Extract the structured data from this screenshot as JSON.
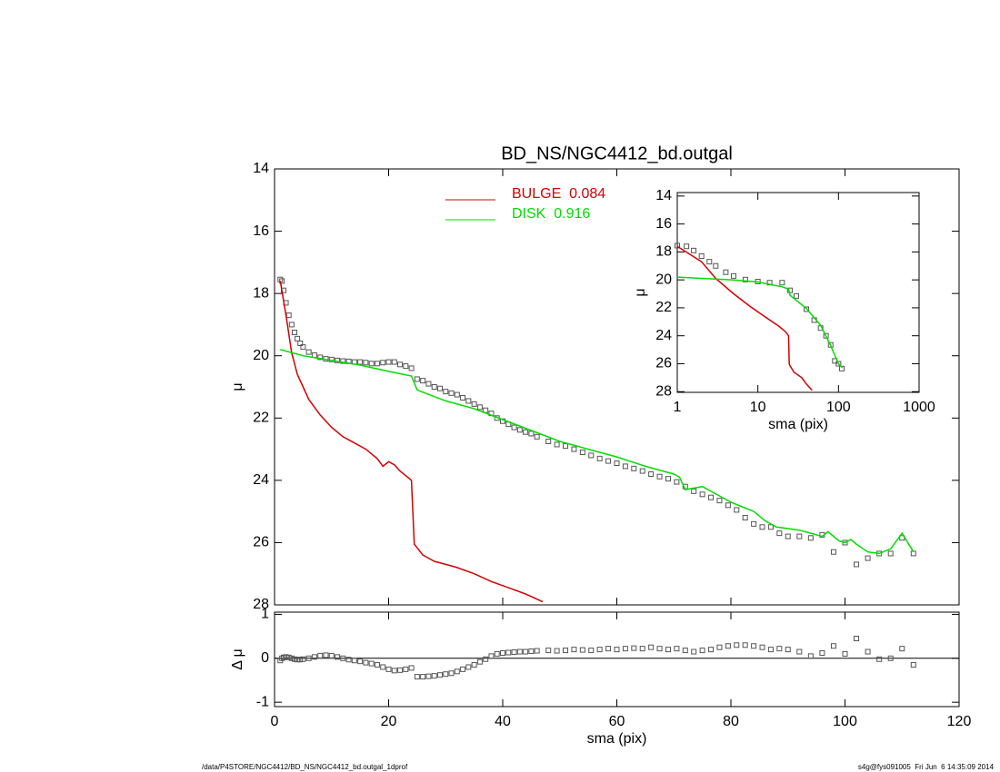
{
  "chart_data": [
    {
      "type": "line",
      "title": "BD_NS/NGC4412_bd.outgal",
      "ylabel": "μ",
      "xlim": [
        0,
        120
      ],
      "xticks": [
        0,
        20,
        40,
        60,
        80,
        100,
        120
      ],
      "ylim": [
        14,
        28
      ],
      "y_inverted": true,
      "yticks": [
        14,
        16,
        18,
        20,
        22,
        24,
        26,
        28
      ],
      "series": [
        {
          "style": "markers",
          "color": "#555555",
          "x": [
            1,
            1.3,
            1.6,
            2,
            2.5,
            3,
            3.5,
            4,
            4.5,
            5,
            6,
            7,
            8,
            9,
            10,
            11,
            12,
            13,
            14,
            15,
            16,
            17,
            18,
            19,
            20,
            21,
            22,
            23,
            24,
            25,
            26,
            27,
            28,
            29,
            30,
            31,
            32,
            33,
            34,
            35,
            36,
            37,
            38,
            39,
            40,
            41,
            42,
            43,
            44,
            45,
            46,
            48,
            49.5,
            51,
            52.5,
            54,
            55.5,
            57,
            58.5,
            60,
            61.5,
            63,
            64.5,
            66,
            67.5,
            69,
            70.5,
            72,
            73.5,
            75,
            76.5,
            78,
            79.5,
            81,
            82.5,
            84,
            85.5,
            87,
            88.5,
            90,
            92,
            94,
            96,
            98,
            100,
            102,
            104,
            106,
            108,
            110,
            112
          ],
          "values": [
            17.55,
            17.6,
            17.9,
            18.3,
            18.7,
            19.0,
            19.25,
            19.45,
            19.6,
            19.72,
            19.88,
            19.98,
            20.05,
            20.1,
            20.12,
            20.15,
            20.17,
            20.18,
            20.2,
            20.2,
            20.22,
            20.25,
            20.25,
            20.22,
            20.2,
            20.2,
            20.28,
            20.33,
            20.4,
            20.75,
            20.8,
            20.9,
            21.0,
            21.05,
            21.15,
            21.2,
            21.25,
            21.35,
            21.45,
            21.55,
            21.65,
            21.75,
            21.85,
            22.0,
            22.1,
            22.2,
            22.3,
            22.38,
            22.45,
            22.5,
            22.6,
            22.75,
            22.85,
            22.9,
            23.0,
            23.1,
            23.2,
            23.3,
            23.38,
            23.45,
            23.55,
            23.62,
            23.7,
            23.8,
            23.88,
            23.95,
            24.05,
            24.2,
            24.35,
            24.45,
            24.55,
            24.65,
            24.8,
            24.95,
            25.2,
            25.4,
            25.5,
            25.5,
            25.7,
            25.8,
            25.8,
            25.85,
            25.75,
            26.3,
            26.0,
            26.7,
            26.5,
            26.35,
            26.35,
            25.85,
            26.35
          ]
        },
        {
          "name": "BULGE  0.084",
          "style": "line",
          "color": "#d40000",
          "x": [
            1,
            2,
            3,
            4,
            5,
            6,
            8,
            10,
            12,
            14,
            16,
            18,
            19,
            20,
            21,
            22,
            23,
            24,
            24.5,
            26,
            28,
            30,
            32,
            35,
            38,
            41,
            44,
            47
          ],
          "values": [
            17.6,
            18.7,
            19.9,
            20.6,
            21.0,
            21.4,
            21.9,
            22.3,
            22.6,
            22.8,
            23.0,
            23.3,
            23.55,
            23.4,
            23.5,
            23.7,
            23.85,
            24.0,
            26.05,
            26.4,
            26.6,
            26.7,
            26.8,
            27.0,
            27.25,
            27.45,
            27.65,
            27.9
          ]
        },
        {
          "name": "DISK  0.916",
          "style": "line",
          "color": "#00dd00",
          "x": [
            1,
            5,
            10,
            15,
            20,
            24,
            25,
            30,
            35,
            40,
            45,
            50,
            55,
            60,
            65,
            70,
            71,
            72,
            75,
            77,
            80,
            82,
            84,
            86,
            88,
            90,
            92,
            94,
            96,
            97,
            99,
            100,
            101,
            102,
            104,
            106,
            108,
            110,
            112
          ],
          "values": [
            19.8,
            20.0,
            20.15,
            20.3,
            20.5,
            20.65,
            21.1,
            21.45,
            21.7,
            22.05,
            22.4,
            22.75,
            23.0,
            23.25,
            23.55,
            23.8,
            23.9,
            24.3,
            24.2,
            24.4,
            24.7,
            24.85,
            25.0,
            25.3,
            25.5,
            25.55,
            25.6,
            25.7,
            25.8,
            25.65,
            25.95,
            26.0,
            25.9,
            26.05,
            26.3,
            26.35,
            26.2,
            25.7,
            26.3
          ]
        }
      ]
    },
    {
      "type": "line",
      "xlabel": "sma (pix)",
      "ylabel": "Δ μ",
      "zero_line": true,
      "xlim": [
        0,
        120
      ],
      "xticks": [
        0,
        20,
        40,
        60,
        80,
        100,
        120
      ],
      "ylim": [
        -1.1,
        1.05
      ],
      "yticks": [
        -1,
        0,
        1
      ],
      "series": [
        {
          "style": "markers",
          "color": "#555555",
          "x": [
            1,
            1.3,
            1.6,
            2,
            2.5,
            3,
            3.5,
            4,
            4.5,
            5,
            6,
            7,
            8,
            9,
            10,
            11,
            12,
            13,
            14,
            15,
            16,
            17,
            18,
            19,
            20,
            21,
            22,
            23,
            24,
            25,
            26,
            27,
            28,
            29,
            30,
            31,
            32,
            33,
            34,
            35,
            36,
            37,
            38,
            39,
            40,
            41,
            42,
            43,
            44,
            45,
            46,
            48,
            49.5,
            51,
            52.5,
            54,
            55.5,
            57,
            58.5,
            60,
            61.5,
            63,
            64.5,
            66,
            67.5,
            69,
            70.5,
            72,
            73.5,
            75,
            76.5,
            78,
            79.5,
            81,
            82.5,
            84,
            85.5,
            87,
            88.5,
            90,
            92,
            94,
            96,
            98,
            100,
            102,
            104,
            106,
            108,
            110,
            112
          ],
          "values": [
            -0.05,
            0,
            0.02,
            0.03,
            0.02,
            0,
            -0.02,
            -0.03,
            -0.03,
            -0.02,
            0,
            0.03,
            0.06,
            0.07,
            0.06,
            0.03,
            0,
            -0.03,
            -0.05,
            -0.07,
            -0.1,
            -0.12,
            -0.15,
            -0.2,
            -0.25,
            -0.28,
            -0.27,
            -0.25,
            -0.22,
            -0.42,
            -0.42,
            -0.41,
            -0.4,
            -0.38,
            -0.36,
            -0.34,
            -0.3,
            -0.25,
            -0.2,
            -0.15,
            -0.08,
            -0.02,
            0.05,
            0.1,
            0.12,
            0.13,
            0.14,
            0.15,
            0.15,
            0.16,
            0.17,
            0.18,
            0.17,
            0.18,
            0.2,
            0.19,
            0.18,
            0.2,
            0.22,
            0.2,
            0.22,
            0.23,
            0.22,
            0.25,
            0.22,
            0.2,
            0.22,
            0.18,
            0.15,
            0.18,
            0.2,
            0.25,
            0.28,
            0.3,
            0.3,
            0.28,
            0.25,
            0.2,
            0.22,
            0.2,
            0.15,
            0.05,
            0.12,
            0.28,
            0.1,
            0.45,
            0.15,
            -0.02,
            0.0,
            0.22,
            -0.15
          ]
        }
      ]
    },
    {
      "type": "line",
      "xlabel": "sma (pix)",
      "ylabel": "μ",
      "xscale": "log",
      "xlim": [
        1,
        1000
      ],
      "xticks": [
        1,
        10,
        100,
        1000
      ],
      "ylim": [
        13.75,
        28.05
      ],
      "y_inverted": true,
      "yticks": [
        14,
        16,
        18,
        20,
        22,
        24,
        26,
        28
      ],
      "series": [
        {
          "style": "markers",
          "color": "#555555",
          "x": [
            1,
            1.3,
            1.6,
            2,
            2.5,
            3,
            4,
            5,
            7,
            10,
            14,
            20,
            25,
            30,
            40,
            50,
            60,
            70,
            80,
            90,
            100,
            110
          ],
          "values": [
            17.55,
            17.6,
            17.9,
            18.3,
            18.7,
            19.0,
            19.45,
            19.72,
            19.98,
            20.12,
            20.2,
            20.2,
            20.75,
            21.15,
            22.1,
            22.88,
            23.45,
            24.0,
            24.65,
            25.8,
            26.0,
            26.35
          ]
        },
        {
          "style": "line",
          "color": "#d40000",
          "x": [
            1,
            2,
            3,
            5,
            8,
            12,
            18,
            22,
            24,
            24.5,
            28,
            35,
            40,
            47
          ],
          "values": [
            17.6,
            18.7,
            19.9,
            21.0,
            21.9,
            22.6,
            23.3,
            23.7,
            24.0,
            26.05,
            26.6,
            27.0,
            27.45,
            27.9
          ]
        },
        {
          "style": "line",
          "color": "#00dd00",
          "x": [
            1,
            5,
            10,
            20,
            24,
            25,
            40,
            60,
            80,
            100,
            112
          ],
          "values": [
            19.8,
            20.0,
            20.15,
            20.5,
            20.65,
            21.1,
            22.05,
            23.25,
            24.7,
            26.0,
            26.3
          ]
        }
      ]
    }
  ],
  "footer": {
    "left": "/data/P4STORE/NGC4412/BD_NS/NGC4412_bd.outgal_1dprof",
    "right": "s4g@fys091005  Fri Jun  6 14:35:09 2014"
  }
}
